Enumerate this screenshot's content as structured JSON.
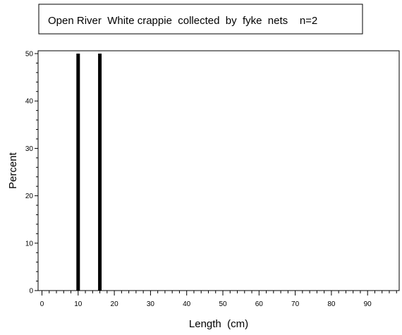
{
  "chart_data": {
    "type": "bar",
    "title": "Open River  White crappie  collected  by  fyke  nets    n=2",
    "xlabel": "Length  (cm)",
    "ylabel": "Percent",
    "x": [
      10,
      16
    ],
    "values": [
      50,
      50
    ],
    "xlim": [
      -1,
      99
    ],
    "ylim": [
      0,
      50
    ],
    "x_ticks": [
      0,
      10,
      20,
      30,
      40,
      50,
      60,
      70,
      80,
      90
    ],
    "y_ticks": [
      0,
      10,
      20,
      30,
      40,
      50
    ],
    "grid": false,
    "bar_color": "#000000"
  }
}
